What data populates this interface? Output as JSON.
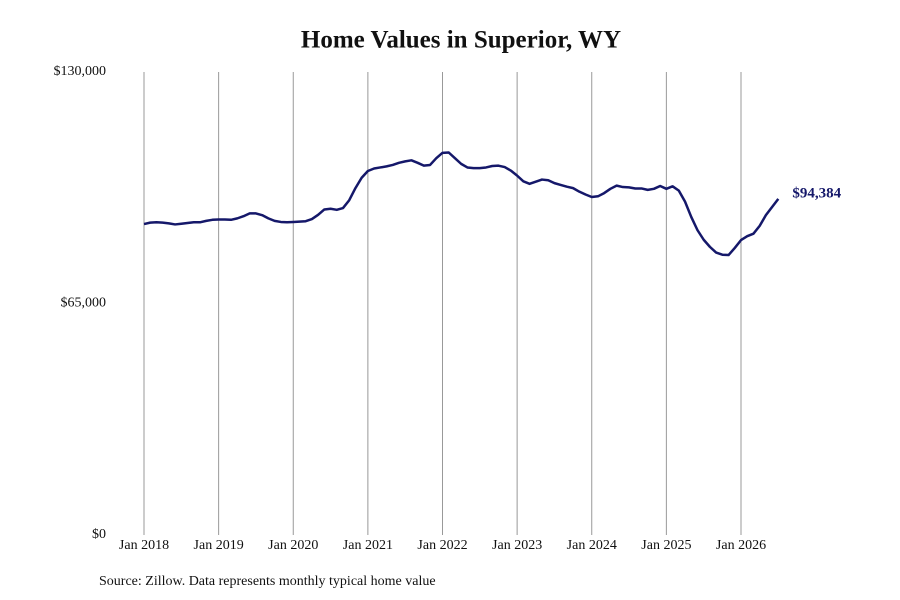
{
  "chart_data": {
    "type": "line",
    "title": "Home Values in Superior, WY",
    "source": "Source: Zillow. Data represents monthly typical home value",
    "x": [
      "2018-01",
      "2018-02",
      "2018-03",
      "2018-04",
      "2018-05",
      "2018-06",
      "2018-07",
      "2018-08",
      "2018-09",
      "2018-10",
      "2018-11",
      "2018-12",
      "2019-01",
      "2019-02",
      "2019-03",
      "2019-04",
      "2019-05",
      "2019-06",
      "2019-07",
      "2019-08",
      "2019-09",
      "2019-10",
      "2019-11",
      "2019-12",
      "2020-01",
      "2020-02",
      "2020-03",
      "2020-04",
      "2020-05",
      "2020-06",
      "2020-07",
      "2020-08",
      "2020-09",
      "2020-10",
      "2020-11",
      "2020-12",
      "2021-01",
      "2021-02",
      "2021-03",
      "2021-04",
      "2021-05",
      "2021-06",
      "2021-07",
      "2021-08",
      "2021-09",
      "2021-10",
      "2021-11",
      "2021-12",
      "2022-01",
      "2022-02",
      "2022-03",
      "2022-04",
      "2022-05",
      "2022-06",
      "2022-07",
      "2022-08",
      "2022-09",
      "2022-10",
      "2022-11",
      "2022-12",
      "2023-01",
      "2023-02",
      "2023-03",
      "2023-04",
      "2023-05",
      "2023-06",
      "2023-07",
      "2023-08",
      "2023-09",
      "2023-10",
      "2023-11",
      "2023-12",
      "2024-01",
      "2024-02",
      "2024-03",
      "2024-04",
      "2024-05",
      "2024-06",
      "2024-07",
      "2024-08",
      "2024-09",
      "2024-10",
      "2024-11",
      "2024-12",
      "2025-01",
      "2025-02",
      "2025-03",
      "2025-04",
      "2025-05",
      "2025-06",
      "2025-07",
      "2025-08",
      "2025-09",
      "2025-10",
      "2025-11",
      "2025-12",
      "2026-01",
      "2026-02",
      "2026-03",
      "2026-04",
      "2026-05",
      "2026-06",
      "2026-07"
    ],
    "series": [
      {
        "name": "Home value",
        "color": "#15186a",
        "values": [
          87300,
          87700,
          87800,
          87700,
          87500,
          87200,
          87400,
          87600,
          87800,
          87800,
          88200,
          88500,
          88600,
          88600,
          88500,
          88900,
          89500,
          90300,
          90300,
          89800,
          88900,
          88200,
          87900,
          87800,
          87900,
          88000,
          88100,
          88700,
          89900,
          91400,
          91600,
          91300,
          91800,
          94000,
          97400,
          100300,
          102200,
          102900,
          103200,
          103500,
          103900,
          104500,
          104900,
          105200,
          104500,
          103700,
          103900,
          105800,
          107300,
          107400,
          105800,
          104200,
          103200,
          103000,
          103000,
          103200,
          103600,
          103700,
          103300,
          102300,
          100900,
          99300,
          98600,
          99200,
          99800,
          99600,
          98800,
          98300,
          97800,
          97400,
          96400,
          95600,
          94900,
          95100,
          96000,
          97200,
          98100,
          97700,
          97600,
          97300,
          97300,
          96900,
          97200,
          98000,
          97200,
          97900,
          96700,
          93600,
          89300,
          85600,
          82900,
          80900,
          79300,
          78700,
          78600,
          80600,
          82800,
          83900,
          84600,
          86800,
          89800,
          92100,
          94384
        ],
        "value_labels": [
          null,
          null,
          null,
          null,
          null,
          null,
          null,
          null,
          null,
          null,
          null,
          null,
          null,
          null,
          null,
          null,
          null,
          null,
          null,
          null,
          null,
          null,
          null,
          null,
          null,
          null,
          null,
          null,
          null,
          null,
          null,
          null,
          null,
          null,
          null,
          null,
          null,
          null,
          null,
          null,
          null,
          null,
          null,
          null,
          null,
          null,
          null,
          null,
          null,
          null,
          null,
          null,
          null,
          null,
          null,
          null,
          null,
          null,
          null,
          null,
          null,
          null,
          null,
          null,
          null,
          null,
          null,
          null,
          null,
          null,
          null,
          null,
          null,
          null,
          null,
          null,
          null,
          null,
          null,
          null,
          null,
          null,
          null,
          null,
          null,
          null,
          null,
          null,
          null,
          null,
          null,
          null,
          null,
          null,
          null,
          null,
          null,
          null,
          null,
          null,
          null,
          null,
          "$94,384"
        ]
      }
    ],
    "xticks": [
      {
        "value": "2018-01",
        "label": "Jan 2018"
      },
      {
        "value": "2019-01",
        "label": "Jan 2019"
      },
      {
        "value": "2020-01",
        "label": "Jan 2020"
      },
      {
        "value": "2021-01",
        "label": "Jan 2021"
      },
      {
        "value": "2022-01",
        "label": "Jan 2022"
      },
      {
        "value": "2023-01",
        "label": "Jan 2023"
      },
      {
        "value": "2024-01",
        "label": "Jan 2024"
      },
      {
        "value": "2025-01",
        "label": "Jan 2025"
      },
      {
        "value": "2026-01",
        "label": "Jan 2026"
      }
    ],
    "ylim": [
      0,
      130000
    ],
    "yticks": [
      {
        "value": 0,
        "label": "$0"
      },
      {
        "value": 65000,
        "label": "$65,000"
      },
      {
        "value": 130000,
        "label": "$130,000"
      }
    ],
    "grid": "x"
  }
}
